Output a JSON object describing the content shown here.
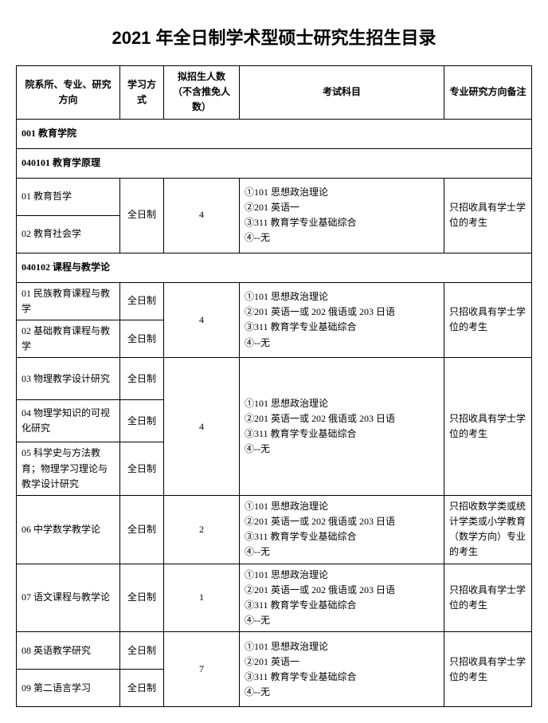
{
  "title": "2021 年全日制学术型硕士研究生招生目录",
  "headers": {
    "col1": "院系所、专业、研究方向",
    "col2": "学习方式",
    "col3": "拟招生人数\n（不含推免人数）",
    "col4": "考试科目",
    "col5": "专业研究方向备注"
  },
  "dept": "001 教育学院",
  "majors": [
    {
      "code": "040101 教育学原理",
      "groups": [
        {
          "directions": [
            "01 教育哲学",
            "02 教育社会学"
          ],
          "mode": "全日制",
          "quota": "4",
          "exam": "①101 思想政治理论\n②201 英语一\n③311 教育学专业基础综合\n④--无",
          "note": "只招收具有学士学位的考生",
          "modeSpanAll": true
        }
      ]
    },
    {
      "code": "040102 课程与教学论",
      "groups": [
        {
          "directions": [
            "01 民族教育课程与教学",
            "02 基础教育课程与教学"
          ],
          "mode": "全日制",
          "quota": "4",
          "exam": "①101 思想政治理论\n②201 英语一或 202 俄语或 203 日语\n③311 教育学专业基础综合\n④--无",
          "note": "只招收具有学士学位的考生",
          "modeSpanAll": false
        },
        {
          "directions": [
            "03 物理教学设计研究",
            "04 物理学知识的可视化研究",
            "05 科学史与方法教育；物理学习理论与教学设计研究"
          ],
          "mode": "全日制",
          "quota": "4",
          "exam": "①101 思想政治理论\n②201 英语一或 202 俄语或 203 日语\n③311 教育学专业基础综合\n④--无",
          "note": "只招收具有学士学位的考生",
          "modeSpanAll": false
        },
        {
          "directions": [
            "06 中学数学教学论"
          ],
          "mode": "全日制",
          "quota": "2",
          "exam": "①101 思想政治理论\n②201 英语一或 202 俄语或 203 日语\n③311 教育学专业基础综合\n④--无",
          "note": "只招收数学类或统计学类或小学教育（数学方向）专业的考生",
          "modeSpanAll": false
        },
        {
          "directions": [
            "07 语文课程与教学论"
          ],
          "mode": "全日制",
          "quota": "1",
          "exam": "①101 思想政治理论\n②201 英语一或 202 俄语或 203 日语\n③311 教育学专业基础综合\n④--无",
          "note": "只招收具有学士学位的考生",
          "modeSpanAll": false
        },
        {
          "directions": [
            "08 英语教学研究",
            "09 第二语言学习"
          ],
          "mode": "全日制",
          "quota": "7",
          "exam": "①101 思想政治理论\n②201 英语一\n③311 教育学专业基础综合\n④--无",
          "note": "只招收具有学士学位的考生",
          "modeSpanAll": false
        }
      ]
    }
  ]
}
